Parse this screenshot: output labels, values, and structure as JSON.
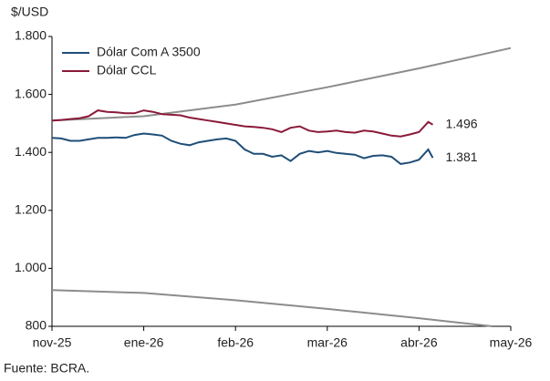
{
  "chart_data": {
    "type": "line",
    "y_label": "$/USD",
    "source": "Fuente: BCRA.",
    "xlim": [
      0,
      5
    ],
    "xticks": [
      {
        "value": 0,
        "label": "nov-25"
      },
      {
        "value": 1,
        "label": "ene-26"
      },
      {
        "value": 2,
        "label": "feb-26"
      },
      {
        "value": 3,
        "label": "mar-26"
      },
      {
        "value": 4,
        "label": "abr-26"
      },
      {
        "value": 5,
        "label": "may-26"
      }
    ],
    "ylim": [
      800,
      1800
    ],
    "yticks": [
      {
        "value": 800,
        "label": "800"
      },
      {
        "value": 1000,
        "label": "1.000"
      },
      {
        "value": 1200,
        "label": "1.200"
      },
      {
        "value": 1400,
        "label": "1.400"
      },
      {
        "value": 1600,
        "label": "1.600"
      },
      {
        "value": 1800,
        "label": "1.800"
      }
    ],
    "legend": "top-left",
    "series": [
      {
        "color": "#8c8c8c",
        "x": [
          0,
          1,
          2,
          3,
          4,
          5
        ],
        "values": [
          1510,
          1525,
          1565,
          1625,
          1690,
          1760
        ]
      },
      {
        "color": "#8c8c8c",
        "x": [
          0,
          1,
          2,
          3,
          4,
          4.8
        ],
        "values": [
          925,
          915,
          890,
          860,
          828,
          800
        ]
      },
      {
        "name": "Dólar Com A 3500",
        "color": "#1f4e79",
        "x": [
          0,
          0.1,
          0.2,
          0.3,
          0.4,
          0.5,
          0.6,
          0.7,
          0.8,
          0.9,
          1,
          1.1,
          1.2,
          1.3,
          1.4,
          1.5,
          1.6,
          1.7,
          1.8,
          1.9,
          2,
          2.1,
          2.2,
          2.3,
          2.4,
          2.5,
          2.6,
          2.7,
          2.8,
          2.9,
          3,
          3.1,
          3.2,
          3.3,
          3.4,
          3.5,
          3.6,
          3.7,
          3.8,
          3.9,
          4,
          4.1,
          4.15
        ],
        "values": [
          1450,
          1448,
          1440,
          1440,
          1445,
          1450,
          1450,
          1452,
          1450,
          1460,
          1465,
          1462,
          1458,
          1440,
          1430,
          1425,
          1435,
          1440,
          1445,
          1448,
          1440,
          1410,
          1395,
          1395,
          1385,
          1390,
          1370,
          1395,
          1405,
          1400,
          1405,
          1398,
          1395,
          1392,
          1380,
          1388,
          1390,
          1385,
          1360,
          1365,
          1375,
          1410,
          1381
        ],
        "end_label": "1.381"
      },
      {
        "name": "Dólar CCL",
        "color": "#8b1a3a",
        "x": [
          0,
          0.1,
          0.2,
          0.3,
          0.4,
          0.5,
          0.6,
          0.7,
          0.8,
          0.9,
          1,
          1.1,
          1.2,
          1.3,
          1.4,
          1.5,
          1.6,
          1.7,
          1.8,
          1.9,
          2,
          2.1,
          2.2,
          2.3,
          2.4,
          2.5,
          2.6,
          2.7,
          2.8,
          2.9,
          3,
          3.1,
          3.2,
          3.3,
          3.4,
          3.5,
          3.6,
          3.7,
          3.8,
          3.9,
          4,
          4.1,
          4.15
        ],
        "values": [
          1510,
          1512,
          1515,
          1518,
          1525,
          1545,
          1540,
          1538,
          1535,
          1535,
          1545,
          1540,
          1532,
          1530,
          1528,
          1520,
          1515,
          1510,
          1505,
          1500,
          1495,
          1490,
          1488,
          1485,
          1480,
          1470,
          1485,
          1490,
          1475,
          1470,
          1472,
          1475,
          1470,
          1468,
          1475,
          1472,
          1465,
          1458,
          1455,
          1462,
          1470,
          1505,
          1496
        ],
        "end_label": "1.496"
      }
    ]
  }
}
